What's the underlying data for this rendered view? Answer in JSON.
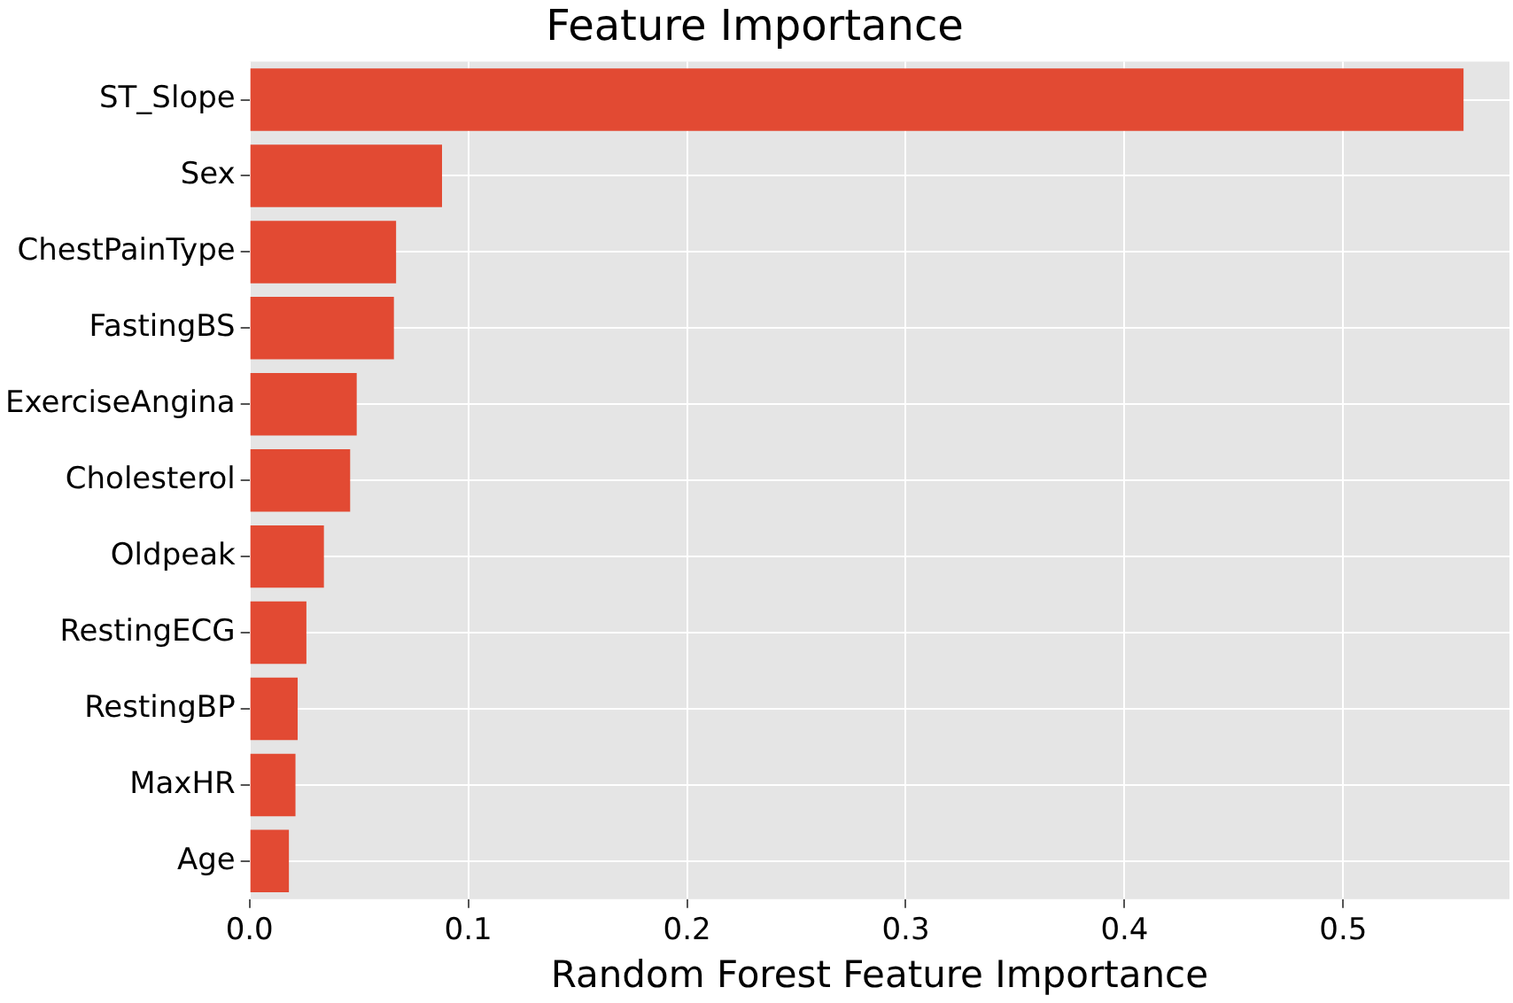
{
  "chart_data": {
    "type": "bar",
    "orientation": "horizontal",
    "title": "Feature Importance",
    "xlabel": "Random Forest Feature Importance",
    "categories": [
      "ST_Slope",
      "Sex",
      "ChestPainType",
      "FastingBS",
      "ExerciseAngina",
      "Cholesterol",
      "Oldpeak",
      "RestingECG",
      "RestingBP",
      "MaxHR",
      "Age"
    ],
    "values": [
      0.555,
      0.088,
      0.067,
      0.066,
      0.049,
      0.046,
      0.034,
      0.026,
      0.022,
      0.021,
      0.018
    ],
    "color": "#e24a33",
    "xlim": [
      0,
      0.576
    ],
    "xticks": [
      {
        "value": 0,
        "label": "0.0"
      },
      0.1,
      0.2,
      0.3,
      0.4,
      0.5
    ],
    "grid": true,
    "legend": false
  }
}
